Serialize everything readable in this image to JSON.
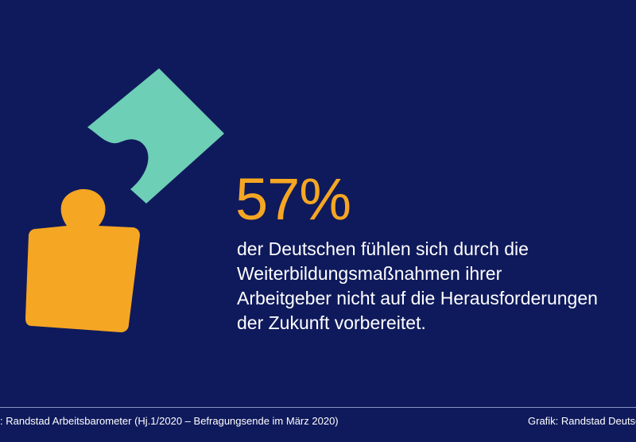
{
  "statistic": {
    "value": "57%",
    "description_lines": [
      "der Deutschen fühlen sich durch die",
      "Weiterbildungsmaßnahmen ihrer",
      "Arbeitgeber nicht auf die Herausforderungen",
      "der Zukunft vorbereitet."
    ]
  },
  "footer": {
    "source": ": Randstad Arbeitsbarometer (Hj.1/2020 – Befragungsende im März 2020)",
    "credit": "Grafik: Randstad Deutschland"
  },
  "colors": {
    "background": "#0f1a5c",
    "accent_orange": "#f5a623",
    "accent_teal": "#6dcfb6",
    "text": "#ffffff"
  },
  "icons": [
    "puzzle-piece-teal-icon",
    "puzzle-piece-orange-icon"
  ]
}
